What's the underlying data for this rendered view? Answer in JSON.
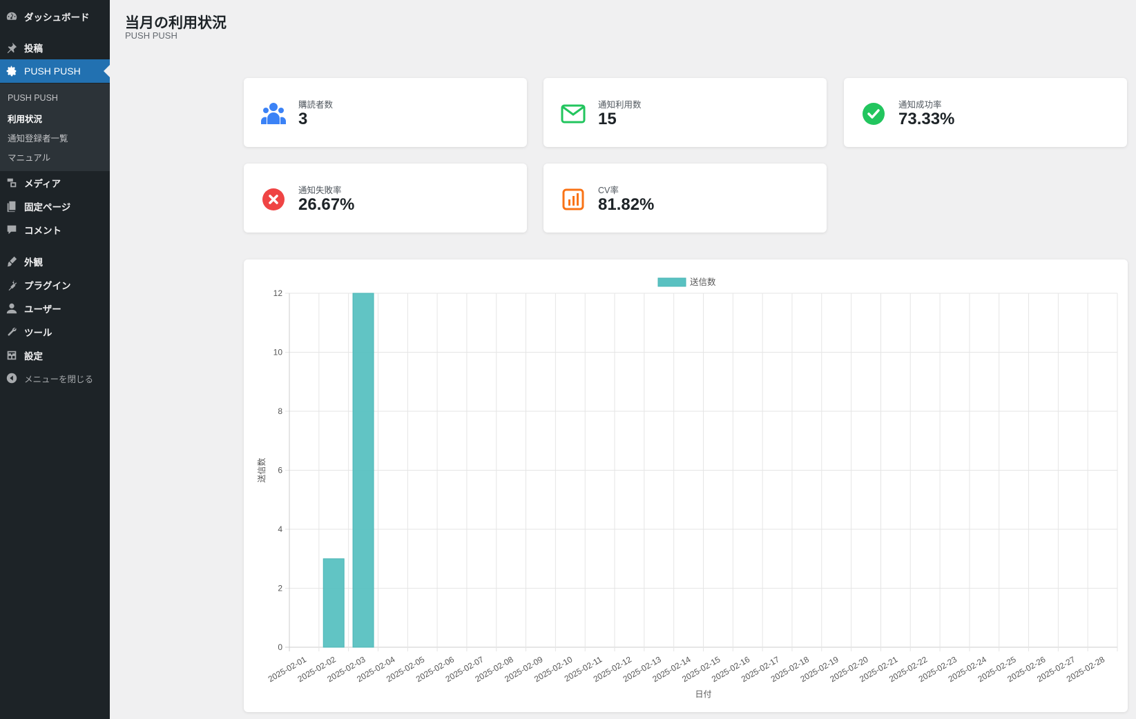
{
  "sidebar": {
    "items": [
      {
        "label": "ダッシュボード",
        "icon": "dashboard-icon"
      },
      {
        "label": "投稿",
        "icon": "pin-icon"
      },
      {
        "label": "PUSH PUSH",
        "icon": "gear-icon"
      },
      {
        "label": "メディア",
        "icon": "media-icon"
      },
      {
        "label": "固定ページ",
        "icon": "pages-icon"
      },
      {
        "label": "コメント",
        "icon": "comment-icon"
      },
      {
        "label": "外観",
        "icon": "brush-icon"
      },
      {
        "label": "プラグイン",
        "icon": "plugin-icon"
      },
      {
        "label": "ユーザー",
        "icon": "user-icon"
      },
      {
        "label": "ツール",
        "icon": "wrench-icon"
      },
      {
        "label": "設定",
        "icon": "settings-icon"
      },
      {
        "label": "メニューを閉じる",
        "icon": "collapse-icon"
      }
    ],
    "submenu": [
      "PUSH PUSH",
      "利用状況",
      "通知登録者一覧",
      "マニュアル"
    ],
    "active_color": "#2271b1"
  },
  "header": {
    "title": "当月の利用状況",
    "subtitle": "PUSH PUSH"
  },
  "stats": [
    {
      "label": "購読者数",
      "value": "3",
      "icon": "users-icon",
      "color": "#3b82f6"
    },
    {
      "label": "通知利用数",
      "value": "15",
      "icon": "mail-icon",
      "color": "#22c55e"
    },
    {
      "label": "通知成功率",
      "value": "73.33%",
      "icon": "check-circle-icon",
      "color": "#22c55e"
    },
    {
      "label": "通知失敗率",
      "value": "26.67%",
      "icon": "x-circle-icon",
      "color": "#ef4444"
    },
    {
      "label": "CV率",
      "value": "81.82%",
      "icon": "bar-chart-icon",
      "color": "#f97316"
    }
  ],
  "chart_data": {
    "type": "bar",
    "categories": [
      "2025-02-01",
      "2025-02-02",
      "2025-02-03",
      "2025-02-04",
      "2025-02-05",
      "2025-02-06",
      "2025-02-07",
      "2025-02-08",
      "2025-02-09",
      "2025-02-10",
      "2025-02-11",
      "2025-02-12",
      "2025-02-13",
      "2025-02-14",
      "2025-02-15",
      "2025-02-16",
      "2025-02-17",
      "2025-02-18",
      "2025-02-19",
      "2025-02-20",
      "2025-02-21",
      "2025-02-22",
      "2025-02-23",
      "2025-02-24",
      "2025-02-25",
      "2025-02-26",
      "2025-02-27",
      "2025-02-28"
    ],
    "series": [
      {
        "name": "送信数",
        "color": "#59c1c1",
        "values": [
          0,
          3,
          12,
          0,
          0,
          0,
          0,
          0,
          0,
          0,
          0,
          0,
          0,
          0,
          0,
          0,
          0,
          0,
          0,
          0,
          0,
          0,
          0,
          0,
          0,
          0,
          0,
          0
        ]
      }
    ],
    "xlabel": "日付",
    "ylabel": "送信数",
    "ylim": [
      0,
      12
    ],
    "yticks": [
      0,
      2,
      4,
      6,
      8,
      10,
      12
    ],
    "grid": true,
    "legend_position": "top-center"
  }
}
